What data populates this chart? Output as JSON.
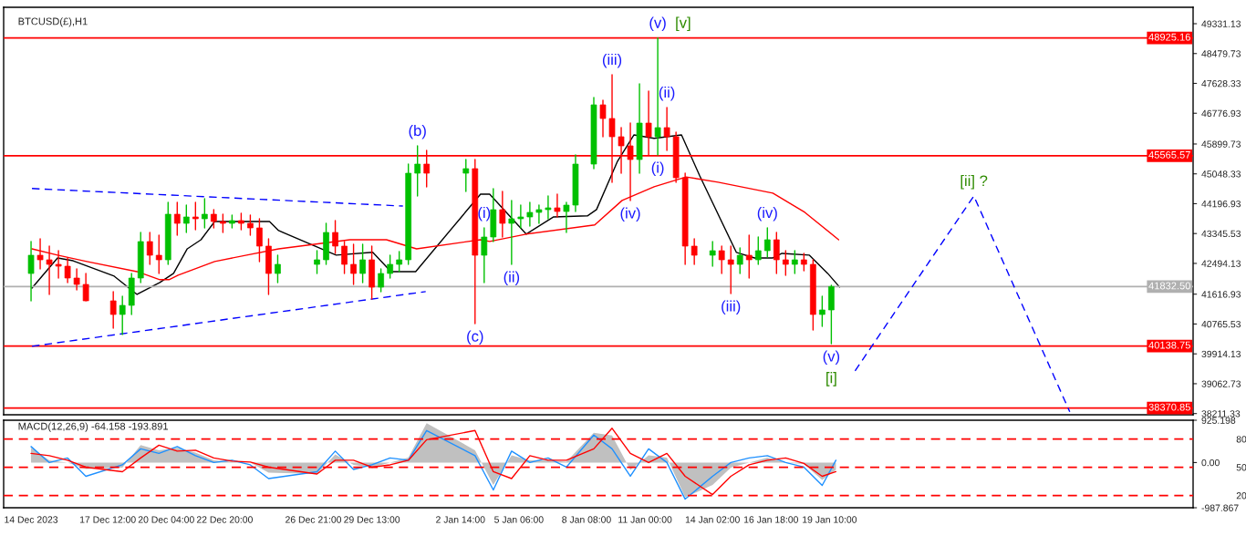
{
  "chart_data": [
    {
      "type": "candlestick",
      "title": "BTCUSD(£),H1",
      "x": [
        "2023-12-14T00:00",
        "2023-12-14T10:00",
        "2023-12-14T20:00",
        "2023-12-15T06:00",
        "2023-12-15T16:00",
        "2023-12-16T02:00",
        "2023-12-16T12:00",
        "2023-12-17T18:00",
        "2023-12-18T04:00",
        "2023-12-18T14:00",
        "2023-12-19T00:00",
        "2023-12-19T10:00",
        "2023-12-19T20:00",
        "2023-12-20T06:00",
        "2023-12-20T16:00",
        "2023-12-21T02:00",
        "2023-12-21T12:00",
        "2023-12-21T22:00",
        "2023-12-22T08:00",
        "2023-12-22T18:00",
        "2023-12-23T04:00",
        "2023-12-23T14:00",
        "2023-12-24T00:00",
        "2023-12-24T10:00",
        "2023-12-24T20:00",
        "2023-12-25T06:00",
        "2023-12-27T01:00",
        "2023-12-27T11:00",
        "2023-12-27T21:00",
        "2023-12-28T07:00",
        "2023-12-28T17:00",
        "2023-12-29T03:00",
        "2023-12-29T13:00",
        "2023-12-29T23:00",
        "2023-12-30T09:00",
        "2023-12-30T19:00",
        "2023-12-31T05:00",
        "2023-12-31T15:00",
        "2024-01-01T01:00",
        "2024-01-02T20:00",
        "2024-01-03T06:00",
        "2024-01-03T16:00",
        "2024-01-04T02:00",
        "2024-01-04T12:00",
        "2024-01-04T22:00",
        "2024-01-05T08:00",
        "2024-01-05T18:00",
        "2024-01-06T04:00",
        "2024-01-06T14:00",
        "2024-01-07T00:00",
        "2024-01-07T10:00",
        "2024-01-07T20:00",
        "2024-01-08T16:00",
        "2024-01-09T02:00",
        "2024-01-09T12:00",
        "2024-01-09T22:00",
        "2024-01-10T08:00",
        "2024-01-10T18:00",
        "2024-01-11T04:00",
        "2024-01-11T14:00",
        "2024-01-12T00:00",
        "2024-01-12T10:00",
        "2024-01-12T20:00",
        "2024-01-13T06:00",
        "2024-01-14T02:00",
        "2024-01-14T12:00",
        "2024-01-14T22:00",
        "2024-01-15T08:00",
        "2024-01-15T18:00",
        "2024-01-16T04:00",
        "2024-01-16T14:00",
        "2024-01-17T00:00",
        "2024-01-17T10:00",
        "2024-01-17T20:00",
        "2024-01-18T06:00",
        "2024-01-18T16:00",
        "2024-01-19T02:00",
        "2024-01-19T12:00"
      ],
      "ohlc": [
        [
          42207,
          43117,
          41427,
          42727
        ],
        [
          42727,
          43195,
          42337,
          42597
        ],
        [
          42597,
          42987,
          41609,
          42467
        ],
        [
          42467,
          42857,
          42077,
          42415
        ],
        [
          42415,
          42649,
          41947,
          42077
        ],
        [
          42077,
          42337,
          41739,
          41895
        ],
        [
          41895,
          42207,
          41427,
          41427
        ],
        [
          41427,
          41687,
          40647,
          41037
        ],
        [
          41037,
          41557,
          40465,
          41297
        ],
        [
          41297,
          42207,
          41037,
          42077
        ],
        [
          42077,
          43377,
          41947,
          43117
        ],
        [
          43117,
          43377,
          42467,
          42727
        ],
        [
          42727,
          43299,
          42207,
          42597
        ],
        [
          42597,
          44235,
          42467,
          43897
        ],
        [
          43897,
          44235,
          43299,
          43637
        ],
        [
          43637,
          44157,
          43377,
          43819
        ],
        [
          43819,
          44235,
          43455,
          43767
        ],
        [
          43767,
          44339,
          43507,
          43897
        ],
        [
          43897,
          44027,
          43507,
          43689
        ],
        [
          43689,
          43897,
          43377,
          43637
        ],
        [
          43637,
          43871,
          43507,
          43715
        ],
        [
          43715,
          43923,
          43455,
          43637
        ],
        [
          43637,
          43871,
          43299,
          43507
        ],
        [
          43507,
          43767,
          42545,
          42987
        ],
        [
          42987,
          43195,
          41609,
          42207
        ],
        [
          42207,
          42727,
          41947,
          42467
        ],
        [
          42467,
          42857,
          42207,
          42597
        ],
        [
          42597,
          43637,
          42467,
          43377
        ],
        [
          43377,
          43715,
          42779,
          42987
        ],
        [
          42987,
          43117,
          42207,
          42467
        ],
        [
          42467,
          43039,
          41895,
          42207
        ],
        [
          42207,
          43039,
          41947,
          42597
        ],
        [
          42597,
          42987,
          41479,
          41817
        ],
        [
          41817,
          42337,
          41687,
          42207
        ],
        [
          42207,
          42727,
          42077,
          42467
        ],
        [
          42467,
          42831,
          42259,
          42597
        ],
        [
          42597,
          45327,
          42467,
          45067
        ],
        [
          45067,
          45847,
          44417,
          45327
        ],
        [
          45327,
          45717,
          44677,
          45067
        ],
        [
          45067,
          45457,
          44547,
          45197
        ],
        [
          45197,
          45457,
          40777,
          42727
        ],
        [
          42727,
          43507,
          41947,
          43247
        ],
        [
          43247,
          44625,
          43117,
          44027
        ],
        [
          44027,
          44547,
          43247,
          43637
        ],
        [
          43637,
          44287,
          42467,
          43767
        ],
        [
          43767,
          44157,
          43507,
          43819
        ],
        [
          43819,
          44235,
          43559,
          43949
        ],
        [
          43949,
          44157,
          43637,
          44027
        ],
        [
          44027,
          44417,
          43767,
          44079
        ],
        [
          44079,
          44469,
          43819,
          43975
        ],
        [
          43975,
          44235,
          43377,
          44157
        ],
        [
          44157,
          45587,
          43975,
          45327
        ],
        [
          45327,
          47225,
          45197,
          47017
        ],
        [
          47017,
          47147,
          46107,
          46627
        ],
        [
          46627,
          47875,
          44807,
          46107
        ],
        [
          46107,
          46367,
          45067,
          45847
        ],
        [
          45847,
          46497,
          44287,
          45457
        ],
        [
          45457,
          47615,
          45067,
          46497
        ],
        [
          46497,
          47407,
          45587,
          46107
        ],
        [
          46107,
          48925.16,
          45587,
          46367
        ],
        [
          46367,
          46939,
          45717,
          46107
        ],
        [
          46107,
          46237,
          44807,
          44937
        ],
        [
          44937,
          45067,
          42467,
          42987
        ],
        [
          42987,
          43195,
          42467,
          42727
        ],
        [
          42727,
          43117,
          42415,
          42857
        ],
        [
          42857,
          42987,
          42207,
          42597
        ],
        [
          42597,
          42987,
          41635,
          42467
        ],
        [
          42467,
          42935,
          42207,
          42727
        ],
        [
          42727,
          43299,
          42077,
          42597
        ],
        [
          42597,
          43247,
          42467,
          42857
        ],
        [
          42857,
          43507,
          42675,
          43169
        ],
        [
          43169,
          43377,
          42207,
          42597
        ],
        [
          42597,
          42857,
          42155,
          42467
        ],
        [
          42467,
          42857,
          42207,
          42597
        ],
        [
          42597,
          42779,
          42285,
          42467
        ],
        [
          42467,
          42597,
          40595,
          41037
        ],
        [
          41037,
          41557,
          40699,
          41167
        ],
        [
          41167,
          41869,
          40205,
          41832.5
        ]
      ],
      "colors": [
        "#00c000",
        "#ff0000",
        "#ff0000",
        "#ff0000",
        "#ff0000",
        "#ff0000",
        "#ff0000",
        "#ff0000",
        "#00c000",
        "#00c000",
        "#00c000",
        "#ff0000",
        "#ff0000",
        "#00c000",
        "#ff0000",
        "#00c000",
        "#ff0000",
        "#00c000",
        "#ff0000",
        "#ff0000",
        "#00c000",
        "#ff0000",
        "#ff0000",
        "#ff0000",
        "#ff0000",
        "#00c000",
        "#00c000",
        "#00c000",
        "#ff0000",
        "#ff0000",
        "#ff0000",
        "#00c000",
        "#ff0000",
        "#00c000",
        "#00c000",
        "#00c000",
        "#00c000",
        "#00c000",
        "#ff0000",
        "#00c000",
        "#ff0000",
        "#00c000",
        "#00c000",
        "#ff0000",
        "#00c000",
        "#00c000",
        "#00c000",
        "#00c000",
        "#00c000",
        "#ff0000",
        "#00c000",
        "#00c000",
        "#00c000",
        "#ff0000",
        "#ff0000",
        "#ff0000",
        "#ff0000",
        "#00c000",
        "#ff0000",
        "#00c000",
        "#ff0000",
        "#ff0000",
        "#ff0000",
        "#ff0000",
        "#00c000",
        "#ff0000",
        "#ff0000",
        "#00c000",
        "#ff0000",
        "#00c000",
        "#00c000",
        "#ff0000",
        "#ff0000",
        "#00c000",
        "#ff0000",
        "#ff0000",
        "#00c000",
        "#00c000"
      ],
      "series": [
        {
          "type": "line",
          "color": "#000000",
          "x": [
            "2023-12-14T01:00",
            "2023-12-15T05:00",
            "2023-12-15T22:00",
            "2023-12-17T19:00",
            "2023-12-18T20:00",
            "2023-12-19T21:00",
            "2023-12-20T12:00",
            "2023-12-21T03:00",
            "2023-12-21T18:00",
            "2023-12-22T09:00",
            "2023-12-24T21:00",
            "2023-12-25T07:00",
            "2023-12-27T22:00",
            "2023-12-29T14:00",
            "2023-12-30T10:00",
            "2023-12-31T13:00",
            "2024-01-03T12:00",
            "2024-01-03T22:00",
            "2024-01-05T14:00",
            "2024-01-06T20:00",
            "2024-01-08T09:00",
            "2024-01-08T19:00",
            "2024-01-09T18:00",
            "2024-01-10T12:00",
            "2024-01-11T10:00",
            "2024-01-12T16:00",
            "2024-01-13T12:00",
            "2024-01-15T04:00",
            "2024-01-16T00:00",
            "2024-01-16T20:00",
            "2024-01-17T06:00",
            "2024-01-18T12:00",
            "2024-01-19T08:00",
            "2024-01-19T21:00"
          ],
          "values": [
            41790,
            42650,
            42570,
            42130,
            41610,
            41950,
            42210,
            42910,
            43170,
            43690,
            43690,
            43430,
            42730,
            42810,
            42260,
            42260,
            44470,
            44470,
            43330,
            43820,
            43850,
            44030,
            45410,
            46160,
            46060,
            46160,
            44990,
            42810,
            42650,
            42650,
            42780,
            42730,
            42210,
            41820
          ]
        },
        {
          "type": "line",
          "color": "#ff0000",
          "x": [
            "2023-12-14T01:00",
            "2023-12-15T05:00",
            "2023-12-16T13:00",
            "2023-12-18T20:00",
            "2023-12-19T21:00",
            "2023-12-20T07:00",
            "2023-12-20T17:00",
            "2023-12-22T09:00",
            "2023-12-23T20:00",
            "2023-12-25T07:00",
            "2023-12-28T13:00",
            "2023-12-30T05:00",
            "2023-12-31T14:00",
            "2024-01-03T12:00",
            "2024-01-03T22:00",
            "2024-01-05T14:00",
            "2024-01-08T17:00",
            "2024-01-09T23:00",
            "2024-01-11T10:00",
            "2024-01-12T21:00",
            "2024-01-14T08:00",
            "2024-01-16T20:00",
            "2024-01-18T07:00",
            "2024-01-19T20:00"
          ],
          "values": [
            42910,
            42730,
            42550,
            42260,
            42030,
            42030,
            42160,
            42550,
            42730,
            42910,
            43170,
            43170,
            42910,
            43170,
            43120,
            43330,
            43590,
            44290,
            44680,
            44960,
            44810,
            44500,
            43950,
            43170
          ]
        },
        {
          "type": "line",
          "color": "#0000ff",
          "line_style": "dashed",
          "x": [
            "2023-12-14T01:00",
            "2023-12-30T23:00"
          ],
          "values": [
            44630,
            44130
          ]
        },
        {
          "type": "line",
          "color": "#0000ff",
          "line_style": "dashed",
          "x": [
            "2023-12-14T01:00",
            "2024-01-01T00:00"
          ],
          "values": [
            40130,
            41690
          ]
        },
        {
          "type": "line",
          "color": "#0000ff",
          "line_style": "dashed",
          "x": [
            "2024-01-20T14:00",
            "2024-01-26T00:00",
            "2024-01-30T09:00"
          ],
          "values": [
            39430,
            44417,
            38260
          ]
        }
      ],
      "xlim": [
        "2023-12-12T18:00",
        "2024-02-05T00:00"
      ],
      "ylim": [
        38177,
        49799
      ],
      "yticks": [
        49331.13,
        48479.73,
        47628.33,
        46776.93,
        45899.73,
        45048.33,
        44196.93,
        43345.53,
        42494.13,
        41616.93,
        40765.53,
        39914.13,
        39062.73,
        38211.33
      ],
      "tick_labels": "y",
      "ref_lines": [
        {
          "axis": "y",
          "value": 48925.16,
          "label": "48925.16",
          "color": "#ff0000"
        },
        {
          "axis": "y",
          "value": 45565.57,
          "label": "45565.57",
          "color": "#ff0000"
        },
        {
          "axis": "y",
          "value": 41832.5,
          "label": "41832.50",
          "color": "#b0b0b0"
        },
        {
          "axis": "y",
          "value": 40138.75,
          "label": "40138.75",
          "color": "#ff0000"
        },
        {
          "axis": "y",
          "value": 38370.85,
          "label": "38370.85",
          "color": "#ff0000"
        }
      ],
      "annotations": [
        {
          "text": "(b)",
          "x": "2023-12-31T15:00",
          "y": 45847
        },
        {
          "text": "(c)",
          "x": "2024-01-03T06:00",
          "y": 40777
        },
        {
          "text": "(i)",
          "x": "2024-01-03T16:00",
          "y": 43507
        },
        {
          "text": "(ii)",
          "x": "2024-01-04T22:00",
          "y": 42467
        },
        {
          "text": "(iii)",
          "x": "2024-01-09T12:00",
          "y": 47875
        },
        {
          "text": "(iv)",
          "x": "2024-01-10T08:00",
          "y": 44287
        },
        {
          "text": "(v)",
          "x": "2024-01-11T14:00",
          "y": 48925.16
        },
        {
          "text": "[v]",
          "x": "2024-01-11T14:00",
          "y": 48925.16
        },
        {
          "text": "(ii)",
          "x": "2024-01-12T00:00",
          "y": 46939
        },
        {
          "text": "(i)",
          "x": "2024-01-11T14:00",
          "y": 45587
        },
        {
          "text": "(iii)",
          "x": "2024-01-14T22:00",
          "y": 41635
        },
        {
          "text": "(iv)",
          "x": "2024-01-16T14:00",
          "y": 43507
        },
        {
          "text": "(v)",
          "x": "2024-01-19T12:00",
          "y": 40205
        },
        {
          "text": "[i]",
          "x": "2024-01-19T12:00",
          "y": 40205
        },
        {
          "text": "[ii] ?",
          "x": "2024-01-26T00:00",
          "y": 44417
        }
      ]
    },
    {
      "type": "line",
      "title": "MACD(12,26,9) -64.158 -193.891",
      "x": [
        "2023-12-14T00:00",
        "2023-12-14T20:00",
        "2023-12-15T16:00",
        "2023-12-16T12:00",
        "2023-12-18T04:00",
        "2023-12-19T00:00",
        "2023-12-19T20:00",
        "2023-12-20T16:00",
        "2023-12-21T12:00",
        "2023-12-22T08:00",
        "2023-12-23T04:00",
        "2023-12-24T00:00",
        "2023-12-24T20:00",
        "2023-12-27T01:00",
        "2023-12-27T21:00",
        "2023-12-28T17:00",
        "2023-12-29T13:00",
        "2023-12-30T09:00",
        "2023-12-31T05:00",
        "2024-01-01T01:00",
        "2024-01-03T06:00",
        "2024-01-04T02:00",
        "2024-01-04T22:00",
        "2024-01-05T18:00",
        "2024-01-06T14:00",
        "2024-01-07T10:00",
        "2024-01-08T16:00",
        "2024-01-09T12:00",
        "2024-01-10T08:00",
        "2024-01-11T04:00",
        "2024-01-12T00:00",
        "2024-01-12T20:00",
        "2024-01-14T02:00",
        "2024-01-14T22:00",
        "2024-01-15T18:00",
        "2024-01-16T14:00",
        "2024-01-17T10:00",
        "2024-01-18T06:00",
        "2024-01-19T02:00",
        "2024-01-19T17:00"
      ],
      "series": [
        {
          "type": "area",
          "color": "#c0c0c0",
          "values": [
            320,
            50,
            0,
            -140,
            -110,
            380,
            270,
            320,
            220,
            50,
            20,
            0,
            -220,
            -250,
            180,
            -50,
            -110,
            0,
            110,
            860,
            270,
            -490,
            160,
            50,
            50,
            20,
            650,
            590,
            -160,
            160,
            110,
            -760,
            -490,
            -110,
            0,
            110,
            0,
            -30,
            -380,
            -160
          ]
        },
        {
          "type": "line",
          "color": "#1e90ff",
          "values": [
            350,
            0,
            100,
            -300,
            -50,
            300,
            200,
            350,
            150,
            0,
            50,
            -50,
            -350,
            -200,
            250,
            -150,
            -50,
            100,
            50,
            700,
            150,
            -600,
            250,
            0,
            100,
            -100,
            600,
            300,
            -300,
            300,
            0,
            -800,
            -300,
            0,
            100,
            150,
            0,
            -100,
            -500,
            50
          ]
        },
        {
          "type": "line",
          "color": "#ff0000",
          "values": [
            200,
            150,
            50,
            -100,
            -200,
            100,
            380,
            250,
            270,
            100,
            30,
            10,
            -100,
            -250,
            50,
            50,
            -100,
            -50,
            50,
            500,
            700,
            -200,
            -350,
            150,
            50,
            50,
            300,
            750,
            200,
            0,
            200,
            -300,
            -700,
            -300,
            -50,
            50,
            100,
            -20,
            -300,
            -200
          ]
        }
      ],
      "xlim": [
        "2023-12-12T18:00",
        "2024-02-05T00:00"
      ],
      "ylim": [
        -987.867,
        925.198
      ],
      "yticks": [
        925.198,
        {
          "value": 0,
          "label": "0.00"
        },
        -987.867
      ],
      "y2lim": [
        7,
        100
      ],
      "y2ticks": [
        80,
        50,
        20
      ],
      "xticks": [
        {
          "value": "2023-12-14T00:00",
          "label": "14 Dec 2023"
        },
        {
          "value": "2023-12-17T12:00",
          "label": "17 Dec 12:00"
        },
        {
          "value": "2023-12-20T04:00",
          "label": "20 Dec 04:00"
        },
        {
          "value": "2023-12-22T20:00",
          "label": "22 Dec 20:00"
        },
        {
          "value": "2023-12-26T21:00",
          "label": "26 Dec 21:00"
        },
        {
          "value": "2023-12-29T13:00",
          "label": "29 Dec 13:00"
        },
        {
          "value": "2024-01-02T14:00",
          "label": "2 Jan 14:00"
        },
        {
          "value": "2024-01-05T06:00",
          "label": "5 Jan 06:00"
        },
        {
          "value": "2024-01-08T08:00",
          "label": "8 Jan 08:00"
        },
        {
          "value": "2024-01-11T00:00",
          "label": "11 Jan 00:00"
        },
        {
          "value": "2024-01-14T02:00",
          "label": "14 Jan 02:00"
        },
        {
          "value": "2024-01-16T18:00",
          "label": "16 Jan 18:00"
        },
        {
          "value": "2024-01-19T10:00",
          "label": "19 Jan 10:00"
        }
      ],
      "ref_lines": [
        {
          "axis": "y2",
          "value": 80,
          "color": "#ff0000",
          "line_style": "dashed"
        },
        {
          "axis": "y2",
          "value": 50,
          "color": "#ff0000",
          "line_style": "dashed"
        },
        {
          "axis": "y2",
          "value": 20,
          "color": "#ff0000",
          "line_style": "dashed"
        }
      ]
    }
  ]
}
